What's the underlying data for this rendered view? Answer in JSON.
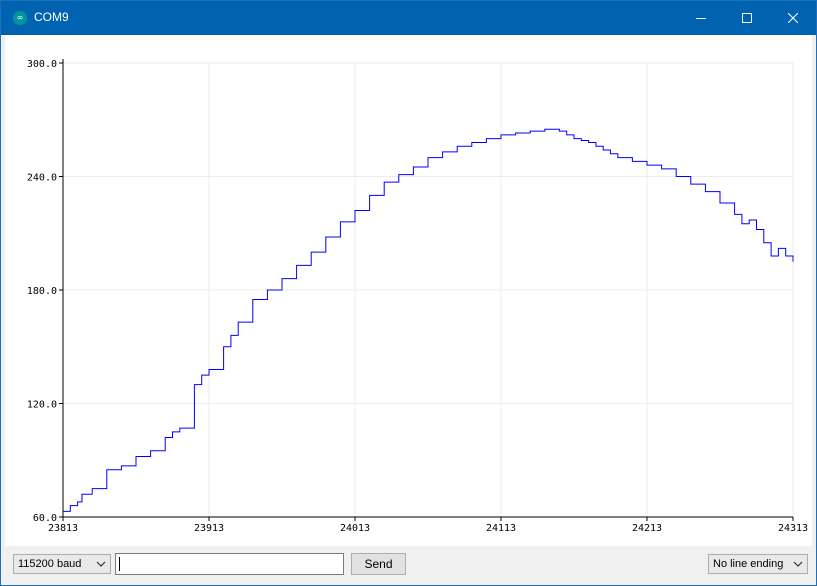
{
  "window": {
    "title": "COM9",
    "app_icon": "arduino-infinity-icon"
  },
  "controls": {
    "baud": "115200 baud",
    "input_value": "",
    "send_label": "Send",
    "line_ending": "No line ending"
  },
  "chart_data": {
    "type": "line",
    "title": "",
    "xlabel": "",
    "ylabel": "",
    "xlim": [
      23813,
      24313
    ],
    "ylim": [
      60,
      300
    ],
    "x_ticks": [
      "23813",
      "23913",
      "24013",
      "24113",
      "24213",
      "24313"
    ],
    "y_ticks": [
      "60.0",
      "120.0",
      "180.0",
      "240.0",
      "300.0"
    ],
    "grid": true,
    "series": [
      {
        "name": "",
        "color": "#0000ff",
        "x": [
          23813,
          23818,
          23823,
          23826,
          23833,
          23843,
          23853,
          23863,
          23873,
          23883,
          23888,
          23893,
          23903,
          23908,
          23913,
          23923,
          23928,
          23933,
          23943,
          23953,
          23963,
          23973,
          23983,
          23993,
          24003,
          24013,
          24023,
          24033,
          24043,
          24053,
          24063,
          24073,
          24083,
          24093,
          24103,
          24113,
          24123,
          24133,
          24143,
          24153,
          24158,
          24163,
          24168,
          24173,
          24178,
          24183,
          24188,
          24193,
          24203,
          24213,
          24223,
          24233,
          24243,
          24253,
          24263,
          24273,
          24278,
          24283,
          24288,
          24293,
          24298,
          24303,
          24308,
          24313
        ],
        "y": [
          63,
          66,
          68,
          72,
          75,
          85,
          87,
          92,
          95,
          102,
          105,
          107,
          130,
          135,
          138,
          150,
          156,
          163,
          175,
          180,
          186,
          193,
          200,
          208,
          216,
          222,
          230,
          237,
          241,
          245,
          250,
          253,
          256,
          258,
          260,
          262,
          263,
          264,
          265,
          264,
          262,
          260,
          259,
          258,
          256,
          254,
          252,
          250,
          248,
          246,
          244,
          240,
          236,
          232,
          226,
          220,
          215,
          217,
          212,
          205,
          198,
          202,
          198,
          195
        ]
      }
    ]
  }
}
